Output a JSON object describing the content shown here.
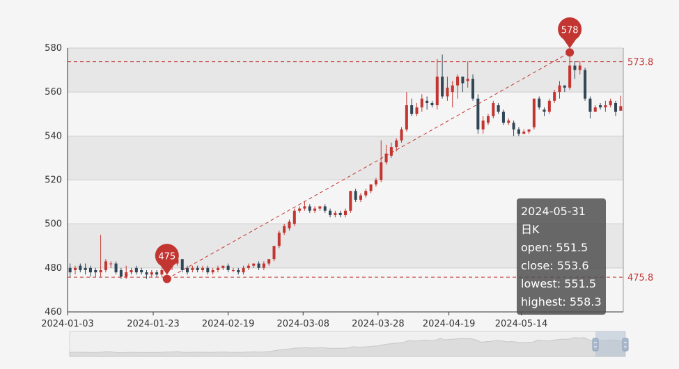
{
  "chart_data": {
    "type": "candlestick",
    "ylim": [
      460,
      580
    ],
    "yticks": [
      460,
      480,
      500,
      520,
      540,
      560,
      580
    ],
    "xtick_labels": [
      "2024-01-03",
      "2024-01-23",
      "2024-02-19",
      "2024-03-08",
      "2024-03-28",
      "2024-04-19",
      "2024-05-14"
    ],
    "candles": [
      [
        480,
        478,
        476,
        482
      ],
      [
        479,
        480,
        477,
        481
      ],
      [
        481,
        479,
        478,
        482
      ],
      [
        480,
        479,
        477,
        482
      ],
      [
        480,
        478,
        476,
        481
      ],
      [
        479,
        478,
        476,
        480
      ],
      [
        478,
        479,
        476,
        495
      ],
      [
        479,
        483,
        478,
        484
      ],
      [
        482,
        482,
        480,
        483
      ],
      [
        482,
        478,
        477,
        483
      ],
      [
        479,
        476,
        475,
        480
      ],
      [
        476,
        478,
        475,
        481
      ],
      [
        478,
        479,
        477,
        480
      ],
      [
        480,
        478,
        477,
        481
      ],
      [
        479,
        478,
        477,
        480
      ],
      [
        478,
        477,
        475,
        479
      ],
      [
        477,
        478,
        476,
        479
      ],
      [
        478,
        477,
        476,
        479
      ],
      [
        477,
        479,
        476,
        480
      ],
      [
        479,
        481,
        478,
        482
      ],
      [
        481,
        481,
        479,
        482
      ],
      [
        482,
        484,
        481,
        484
      ],
      [
        484,
        479,
        478,
        484
      ],
      [
        480,
        478,
        477,
        481
      ],
      [
        479,
        480,
        478,
        481
      ],
      [
        480,
        479,
        478,
        481
      ],
      [
        479,
        480,
        478,
        481
      ],
      [
        480,
        478,
        477,
        481
      ],
      [
        478,
        479,
        477,
        480
      ],
      [
        479,
        480,
        478,
        481
      ],
      [
        480,
        481,
        479,
        481
      ],
      [
        481,
        479,
        478,
        482
      ],
      [
        479,
        479,
        478,
        480
      ],
      [
        479,
        478,
        477,
        480
      ],
      [
        478,
        480,
        477,
        481
      ],
      [
        480,
        481,
        479,
        482
      ],
      [
        481,
        482,
        480,
        482
      ],
      [
        482,
        480,
        479,
        483
      ],
      [
        480,
        482,
        479,
        483
      ],
      [
        482,
        484,
        481,
        484
      ],
      [
        484,
        490,
        483,
        490
      ],
      [
        490,
        496,
        489,
        497
      ],
      [
        496,
        499,
        495,
        500
      ],
      [
        498,
        501,
        497,
        502
      ],
      [
        500,
        506,
        499,
        507
      ],
      [
        506,
        507,
        505,
        508
      ],
      [
        507,
        508,
        506,
        510
      ],
      [
        508,
        506,
        505,
        509
      ],
      [
        506,
        507,
        505,
        508
      ],
      [
        507,
        508,
        506,
        508
      ],
      [
        508,
        506,
        505,
        509
      ],
      [
        506,
        504,
        503,
        507
      ],
      [
        504,
        505,
        503,
        506
      ],
      [
        505,
        504,
        503,
        506
      ],
      [
        504,
        506,
        503,
        507
      ],
      [
        506,
        515,
        505,
        515
      ],
      [
        515,
        511,
        510,
        516
      ],
      [
        511,
        513,
        510,
        514
      ],
      [
        513,
        515,
        512,
        516
      ],
      [
        515,
        518,
        514,
        518
      ],
      [
        518,
        520,
        517,
        521
      ],
      [
        520,
        528,
        519,
        538
      ],
      [
        528,
        532,
        527,
        536
      ],
      [
        531,
        535,
        530,
        537
      ],
      [
        535,
        538,
        533,
        539
      ],
      [
        538,
        543,
        537,
        544
      ],
      [
        543,
        554,
        542,
        560
      ],
      [
        554,
        550,
        549,
        557
      ],
      [
        550,
        553,
        549,
        555
      ],
      [
        553,
        557,
        551,
        559
      ],
      [
        556,
        555,
        552,
        558
      ],
      [
        555,
        554,
        553,
        556
      ],
      [
        554,
        567,
        552,
        575
      ],
      [
        567,
        558,
        557,
        577
      ],
      [
        558,
        562,
        556,
        567
      ],
      [
        560,
        563,
        553,
        565
      ],
      [
        563,
        567,
        557,
        568
      ],
      [
        567,
        564,
        560,
        567
      ],
      [
        565,
        566,
        562,
        574
      ],
      [
        566,
        557,
        556,
        568
      ],
      [
        557,
        543,
        541,
        559
      ],
      [
        543,
        547,
        541,
        549
      ],
      [
        546,
        549,
        545,
        550
      ],
      [
        549,
        555,
        548,
        556
      ],
      [
        554,
        551,
        550,
        555
      ],
      [
        551,
        546,
        545,
        552
      ],
      [
        546,
        547,
        545,
        548
      ],
      [
        546,
        543,
        540,
        547
      ],
      [
        543,
        541,
        540,
        544
      ],
      [
        541,
        542,
        541,
        543
      ],
      [
        542,
        543,
        541,
        543
      ],
      [
        544,
        557,
        543,
        557
      ],
      [
        557,
        553,
        552,
        558
      ],
      [
        552,
        551,
        549,
        553
      ],
      [
        551,
        556,
        550,
        557
      ],
      [
        556,
        560,
        555,
        561
      ],
      [
        560,
        563,
        557,
        565
      ],
      [
        563,
        562,
        560,
        563
      ],
      [
        562,
        572,
        561,
        578
      ],
      [
        572,
        570,
        566,
        574
      ],
      [
        570,
        572,
        568,
        574
      ],
      [
        570,
        557,
        556,
        571
      ],
      [
        557,
        551,
        548,
        558
      ],
      [
        551,
        553,
        551,
        554
      ],
      [
        554,
        553,
        552,
        555
      ],
      [
        553,
        554,
        551,
        556
      ],
      [
        554,
        556,
        553,
        557
      ],
      [
        555,
        551,
        549,
        556
      ],
      [
        551.5,
        553.6,
        551.5,
        558.3
      ]
    ],
    "markpoints": [
      {
        "label": "578",
        "value": 578,
        "index": 98
      },
      {
        "label": "475",
        "value": 475,
        "index": 19
      }
    ],
    "marklines": [
      {
        "label": "573.8",
        "value": 573.8
      },
      {
        "label": "475.8",
        "value": 475.8
      }
    ],
    "colors": {
      "up": "#c23531",
      "down": "#314656",
      "band_dark": "#e7e7e7",
      "band_light": "#f5f5f5",
      "axis": "#333333",
      "mark": "#c23531"
    },
    "tooltip": {
      "date": "2024-05-31",
      "series": "日K",
      "open": "open: 551.5",
      "close": "close: 553.6",
      "lowest": "lowest: 551.5",
      "highest": "highest: 558.3"
    }
  }
}
